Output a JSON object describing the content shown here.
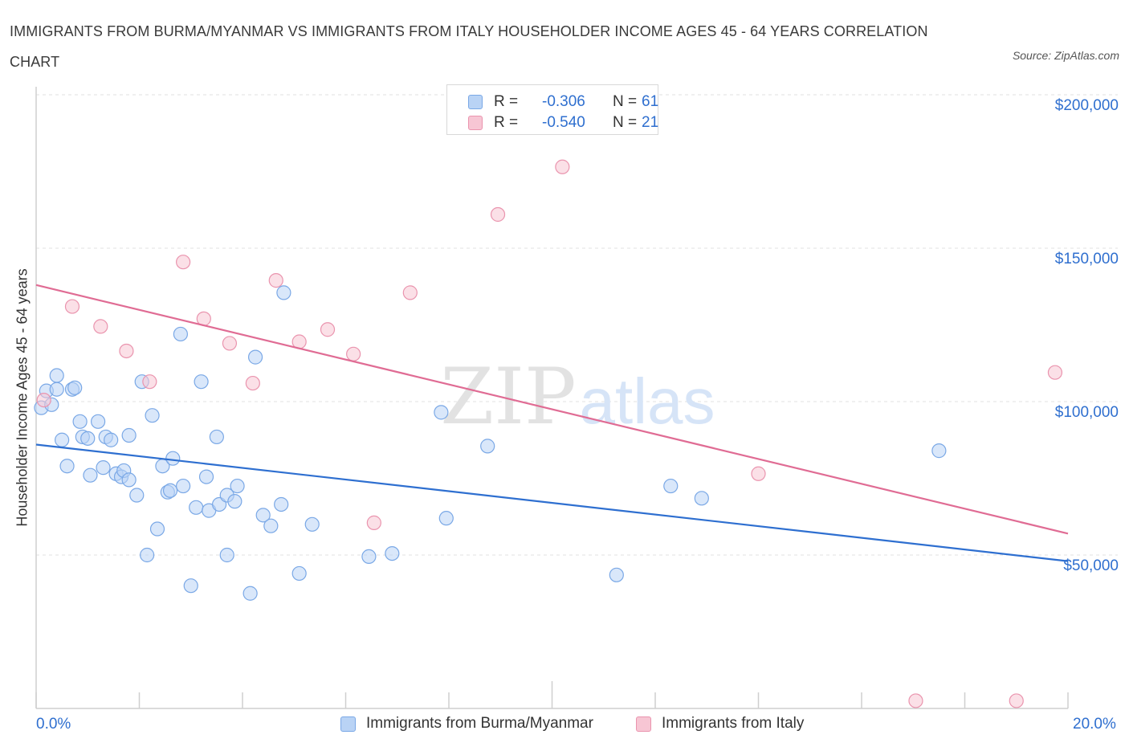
{
  "title": "IMMIGRANTS FROM BURMA/MYANMAR VS IMMIGRANTS FROM ITALY HOUSEHOLDER INCOME AGES 45 - 64 YEARS CORRELATION CHART",
  "source": "Source: ZipAtlas.com",
  "watermark": {
    "zip": "ZIP",
    "atlas": "atlas"
  },
  "legend": {
    "rows": [
      {
        "r_label": "R =",
        "r_value": "-0.306",
        "n_label": "N =",
        "n_value": "61"
      },
      {
        "r_label": "R =",
        "r_value": "-0.540",
        "n_label": "N =",
        "n_value": "21"
      }
    ]
  },
  "bottom_legend": [
    "Immigrants from Burma/Myanmar",
    "Immigrants from Italy"
  ],
  "colors": {
    "blue_fill": "#b9d3f5",
    "blue_stroke": "#7aa8e6",
    "blue_line": "#2e6fd0",
    "pink_fill": "#f7c6d4",
    "pink_stroke": "#ea94ae",
    "pink_line": "#e06c94",
    "grid": "#e0e0e0",
    "axis_text": "#2f6fcf"
  },
  "chart_data": {
    "type": "scatter",
    "title": "IMMIGRANTS FROM BURMA/MYANMAR VS IMMIGRANTS FROM ITALY HOUSEHOLDER INCOME AGES 45 - 64 YEARS CORRELATION CHART",
    "xlabel": "",
    "ylabel": "Householder Income Ages 45 - 64 years",
    "xlim": [
      0,
      20
    ],
    "ylim": [
      0,
      200000
    ],
    "x_tick_labels": [
      "0.0%",
      "20.0%"
    ],
    "y_ticks": [
      50000,
      100000,
      150000,
      200000
    ],
    "y_tick_labels": [
      "$50,000",
      "$100,000",
      "$150,000",
      "$200,000"
    ],
    "grid": true,
    "legend_position": "top-center",
    "series": [
      {
        "name": "Immigrants from Burma/Myanmar",
        "r": -0.306,
        "n": 61,
        "trend": {
          "x": [
            0,
            20
          ],
          "y": [
            86000,
            48000
          ]
        },
        "points": [
          [
            0.1,
            98000
          ],
          [
            0.2,
            103500
          ],
          [
            0.3,
            99000
          ],
          [
            0.4,
            104000
          ],
          [
            0.4,
            108500
          ],
          [
            0.5,
            87500
          ],
          [
            0.6,
            79000
          ],
          [
            0.7,
            104000
          ],
          [
            0.75,
            104500
          ],
          [
            0.85,
            93500
          ],
          [
            0.9,
            88500
          ],
          [
            1.0,
            88000
          ],
          [
            1.05,
            76000
          ],
          [
            1.2,
            93500
          ],
          [
            1.3,
            78500
          ],
          [
            1.35,
            88500
          ],
          [
            1.45,
            87500
          ],
          [
            1.55,
            76500
          ],
          [
            1.65,
            75500
          ],
          [
            1.7,
            77500
          ],
          [
            1.8,
            74500
          ],
          [
            1.8,
            89000
          ],
          [
            1.95,
            69500
          ],
          [
            2.05,
            106500
          ],
          [
            2.15,
            50000
          ],
          [
            2.25,
            95500
          ],
          [
            2.35,
            58500
          ],
          [
            2.45,
            79000
          ],
          [
            2.55,
            70500
          ],
          [
            2.6,
            71000
          ],
          [
            2.65,
            81500
          ],
          [
            2.8,
            122000
          ],
          [
            2.85,
            72500
          ],
          [
            3.0,
            40000
          ],
          [
            3.1,
            65500
          ],
          [
            3.2,
            106500
          ],
          [
            3.3,
            75500
          ],
          [
            3.35,
            64500
          ],
          [
            3.5,
            88500
          ],
          [
            3.55,
            66500
          ],
          [
            3.7,
            50000
          ],
          [
            3.7,
            69500
          ],
          [
            3.85,
            67500
          ],
          [
            3.9,
            72500
          ],
          [
            4.15,
            37500
          ],
          [
            4.25,
            114500
          ],
          [
            4.4,
            63000
          ],
          [
            4.55,
            59500
          ],
          [
            4.75,
            66500
          ],
          [
            4.8,
            135500
          ],
          [
            5.1,
            44000
          ],
          [
            5.35,
            60000
          ],
          [
            6.45,
            49500
          ],
          [
            6.9,
            50500
          ],
          [
            7.85,
            96500
          ],
          [
            7.95,
            62000
          ],
          [
            8.75,
            85500
          ],
          [
            11.25,
            43500
          ],
          [
            12.3,
            72500
          ],
          [
            12.9,
            68500
          ],
          [
            17.5,
            84000
          ]
        ]
      },
      {
        "name": "Immigrants from Italy",
        "r": -0.54,
        "n": 21,
        "trend": {
          "x": [
            0,
            20
          ],
          "y": [
            138000,
            57000
          ]
        },
        "points": [
          [
            0.15,
            100500
          ],
          [
            0.7,
            131000
          ],
          [
            1.25,
            124500
          ],
          [
            1.75,
            116500
          ],
          [
            2.2,
            106500
          ],
          [
            2.85,
            145500
          ],
          [
            3.25,
            127000
          ],
          [
            3.75,
            119000
          ],
          [
            4.2,
            106000
          ],
          [
            4.65,
            139500
          ],
          [
            5.1,
            119500
          ],
          [
            5.65,
            123500
          ],
          [
            6.15,
            115500
          ],
          [
            6.55,
            60500
          ],
          [
            7.25,
            135500
          ],
          [
            8.95,
            161000
          ],
          [
            10.2,
            176500
          ],
          [
            14.0,
            76500
          ],
          [
            17.05,
            2500
          ],
          [
            19.0,
            2500
          ],
          [
            19.75,
            109500
          ]
        ]
      }
    ]
  }
}
